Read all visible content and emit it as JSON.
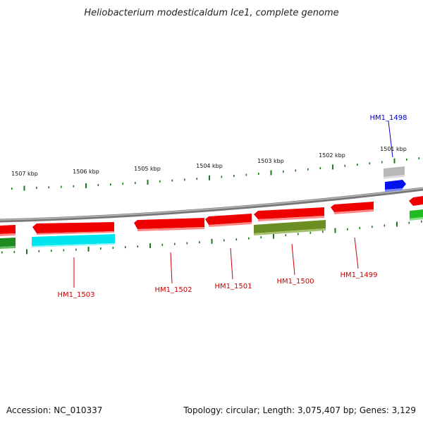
{
  "title": "Heliobacterium modesticaldum Ice1, complete genome",
  "footer": {
    "accession": "Accession: NC_010337",
    "summary": "Topology: circular; Length: 3,075,407 bp; Genes: 3,129"
  },
  "scale_labels": [
    "1507 kbp",
    "1506 kbp",
    "1505 kbp",
    "1504 kbp",
    "1503 kbp",
    "1502 kbp",
    "1501 kbp"
  ],
  "colors": {
    "backbone": "#888888",
    "ticks": "#1a7a1a",
    "gene_red": "#ee0000",
    "gene_cyan": "#00e5ee",
    "gene_olive": "#6b8e23",
    "gene_green": "#22aa22",
    "gene_gray": "#b8b8b8",
    "gene_blue": "#0011ee",
    "label_red": "#cc0000",
    "label_blue": "#0000cc"
  },
  "gene_labels": [
    {
      "name": "HM1_1503",
      "color": "label_red"
    },
    {
      "name": "HM1_1502",
      "color": "label_red"
    },
    {
      "name": "HM1_1501",
      "color": "label_red"
    },
    {
      "name": "HM1_1500",
      "color": "label_red"
    },
    {
      "name": "HM1_1499",
      "color": "label_red"
    },
    {
      "name": "HM1_1498",
      "color": "label_blue"
    }
  ]
}
